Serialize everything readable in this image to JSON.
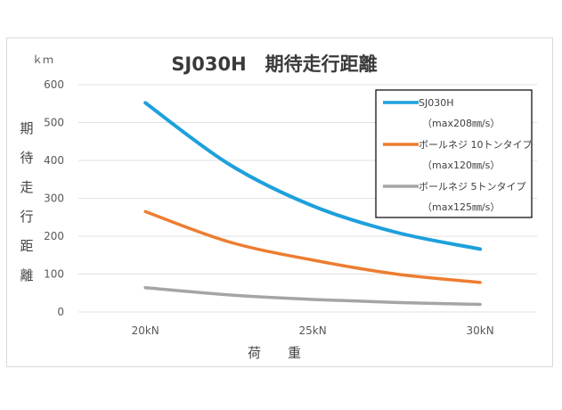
{
  "chart_data": {
    "type": "line",
    "title": "SJ030H　期待走行距離",
    "ylabel": [
      "期",
      "待",
      "走",
      "行",
      "距",
      "離"
    ],
    "yunit": "ｋｍ",
    "xlabel": "荷　　重",
    "x": [
      20,
      22.5,
      25,
      27.5,
      30
    ],
    "x_ticks": [
      "20kN",
      "25kN",
      "30kN"
    ],
    "y_ticks": [
      0,
      100,
      200,
      300,
      400,
      500,
      600
    ],
    "ylim": [
      0,
      600
    ],
    "grid": true,
    "legend_position": "top-right",
    "series": [
      {
        "name": "SJ030H",
        "sub": "（max208㎜/s）",
        "color": "#1ea0dc",
        "values": [
          552,
          390,
          280,
          210,
          166
        ]
      },
      {
        "name": "ボールネジ 10トンタイプ",
        "sub": "（max120㎜/s）",
        "color": "#ed7d31",
        "values": [
          265,
          185,
          137,
          100,
          78
        ]
      },
      {
        "name": "ボールネジ 5トンタイプ",
        "sub": "（max125㎜/s）",
        "color": "#a5a5a5",
        "values": [
          64,
          45,
          33,
          25,
          20
        ]
      }
    ]
  },
  "colors": {
    "grid": "#e0e0e0",
    "legend_border": "#000000"
  }
}
